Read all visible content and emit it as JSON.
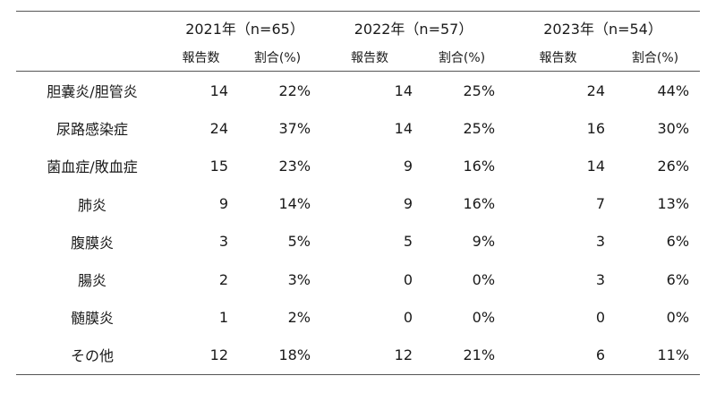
{
  "years": [
    {
      "label": "2021年（n=65）",
      "count_header": "報告数",
      "pct_header": "割合(%)"
    },
    {
      "label": "2022年（n=57）",
      "count_header": "報告数",
      "pct_header": "割合(%)"
    },
    {
      "label": "2023年（n=54）",
      "count_header": "報告数",
      "pct_header": "割合(%)"
    }
  ],
  "rows": [
    {
      "name": "胆嚢炎/胆管炎",
      "cells": [
        "14",
        "22%",
        "14",
        "25%",
        "24",
        "44%"
      ]
    },
    {
      "name": "尿路感染症",
      "cells": [
        "24",
        "37%",
        "14",
        "25%",
        "16",
        "30%"
      ]
    },
    {
      "name": "菌血症/敗血症",
      "cells": [
        "15",
        "23%",
        "9",
        "16%",
        "14",
        "26%"
      ]
    },
    {
      "name": "肺炎",
      "cells": [
        "9",
        "14%",
        "9",
        "16%",
        "7",
        "13%"
      ]
    },
    {
      "name": "腹膜炎",
      "cells": [
        "3",
        "5%",
        "5",
        "9%",
        "3",
        "6%"
      ]
    },
    {
      "name": "腸炎",
      "cells": [
        "2",
        "3%",
        "0",
        "0%",
        "3",
        "6%"
      ]
    },
    {
      "name": "髄膜炎",
      "cells": [
        "1",
        "2%",
        "0",
        "0%",
        "0",
        "0%"
      ]
    },
    {
      "name": "その他",
      "cells": [
        "12",
        "18%",
        "12",
        "21%",
        "6",
        "11%"
      ]
    }
  ]
}
